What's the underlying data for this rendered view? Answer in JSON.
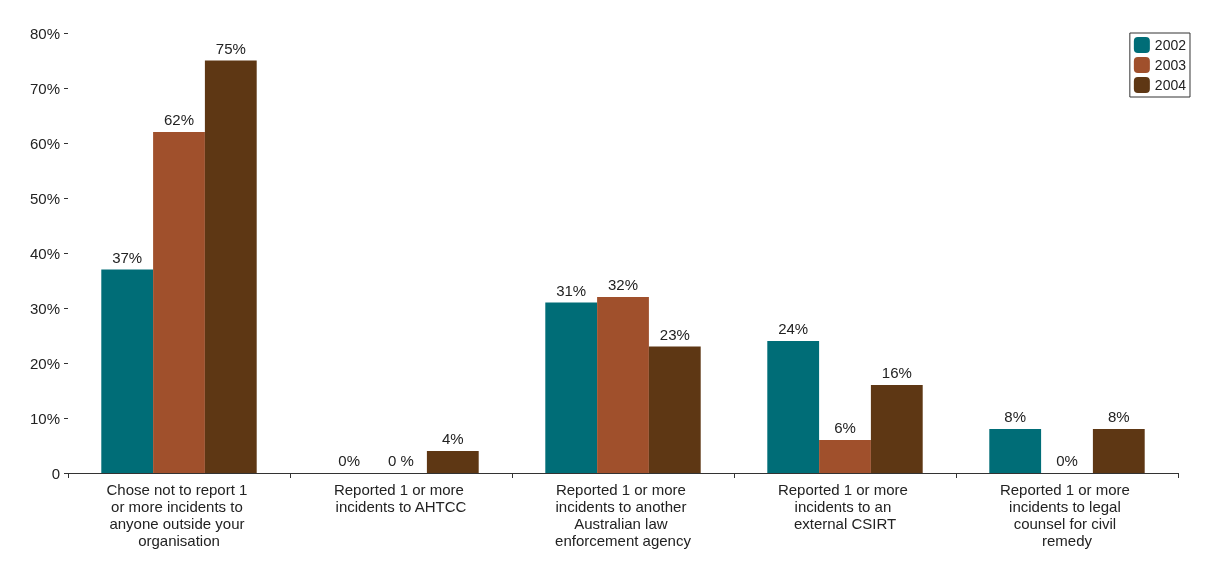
{
  "chart_data": {
    "type": "bar",
    "categories": [
      "Chose not to report 1 or more incidents to anyone outside your organisation",
      "Reported 1 or more incidents to AHTCC",
      "Reported 1 or more incidents to another Australian law enforcement agency",
      "Reported 1 or more incidents to an external CSIRT",
      "Reported 1 or more incidents to legal counsel for civil remedy"
    ],
    "series": [
      {
        "name": "2002",
        "color": "#006d77",
        "values": [
          37,
          0,
          31,
          24,
          8
        ],
        "value_labels": [
          "37%",
          "0%",
          "31%",
          "24%",
          "8%"
        ]
      },
      {
        "name": "2003",
        "color": "#a0502c",
        "values": [
          62,
          0,
          32,
          6,
          0
        ],
        "value_labels": [
          "62%",
          "0 %",
          "32%",
          "6%",
          "0%"
        ]
      },
      {
        "name": "2004",
        "color": "#5e3714",
        "values": [
          75,
          4,
          23,
          16,
          8
        ],
        "value_labels": [
          "75%",
          "4%",
          "23%",
          "16%",
          "8%"
        ]
      }
    ],
    "ylim": [
      0,
      80
    ],
    "yticks": [
      0,
      {
        "value": 10,
        "label": "10%"
      },
      {
        "value": 20,
        "label": "20%"
      },
      {
        "value": 30,
        "label": "30%"
      },
      {
        "value": 40,
        "label": "40%"
      },
      {
        "value": 50,
        "label": "50%"
      },
      {
        "value": 60,
        "label": "60%"
      },
      {
        "value": 70,
        "label": "70%"
      },
      {
        "value": 80,
        "label": "80%"
      }
    ],
    "grid": false,
    "legend": "top right"
  }
}
